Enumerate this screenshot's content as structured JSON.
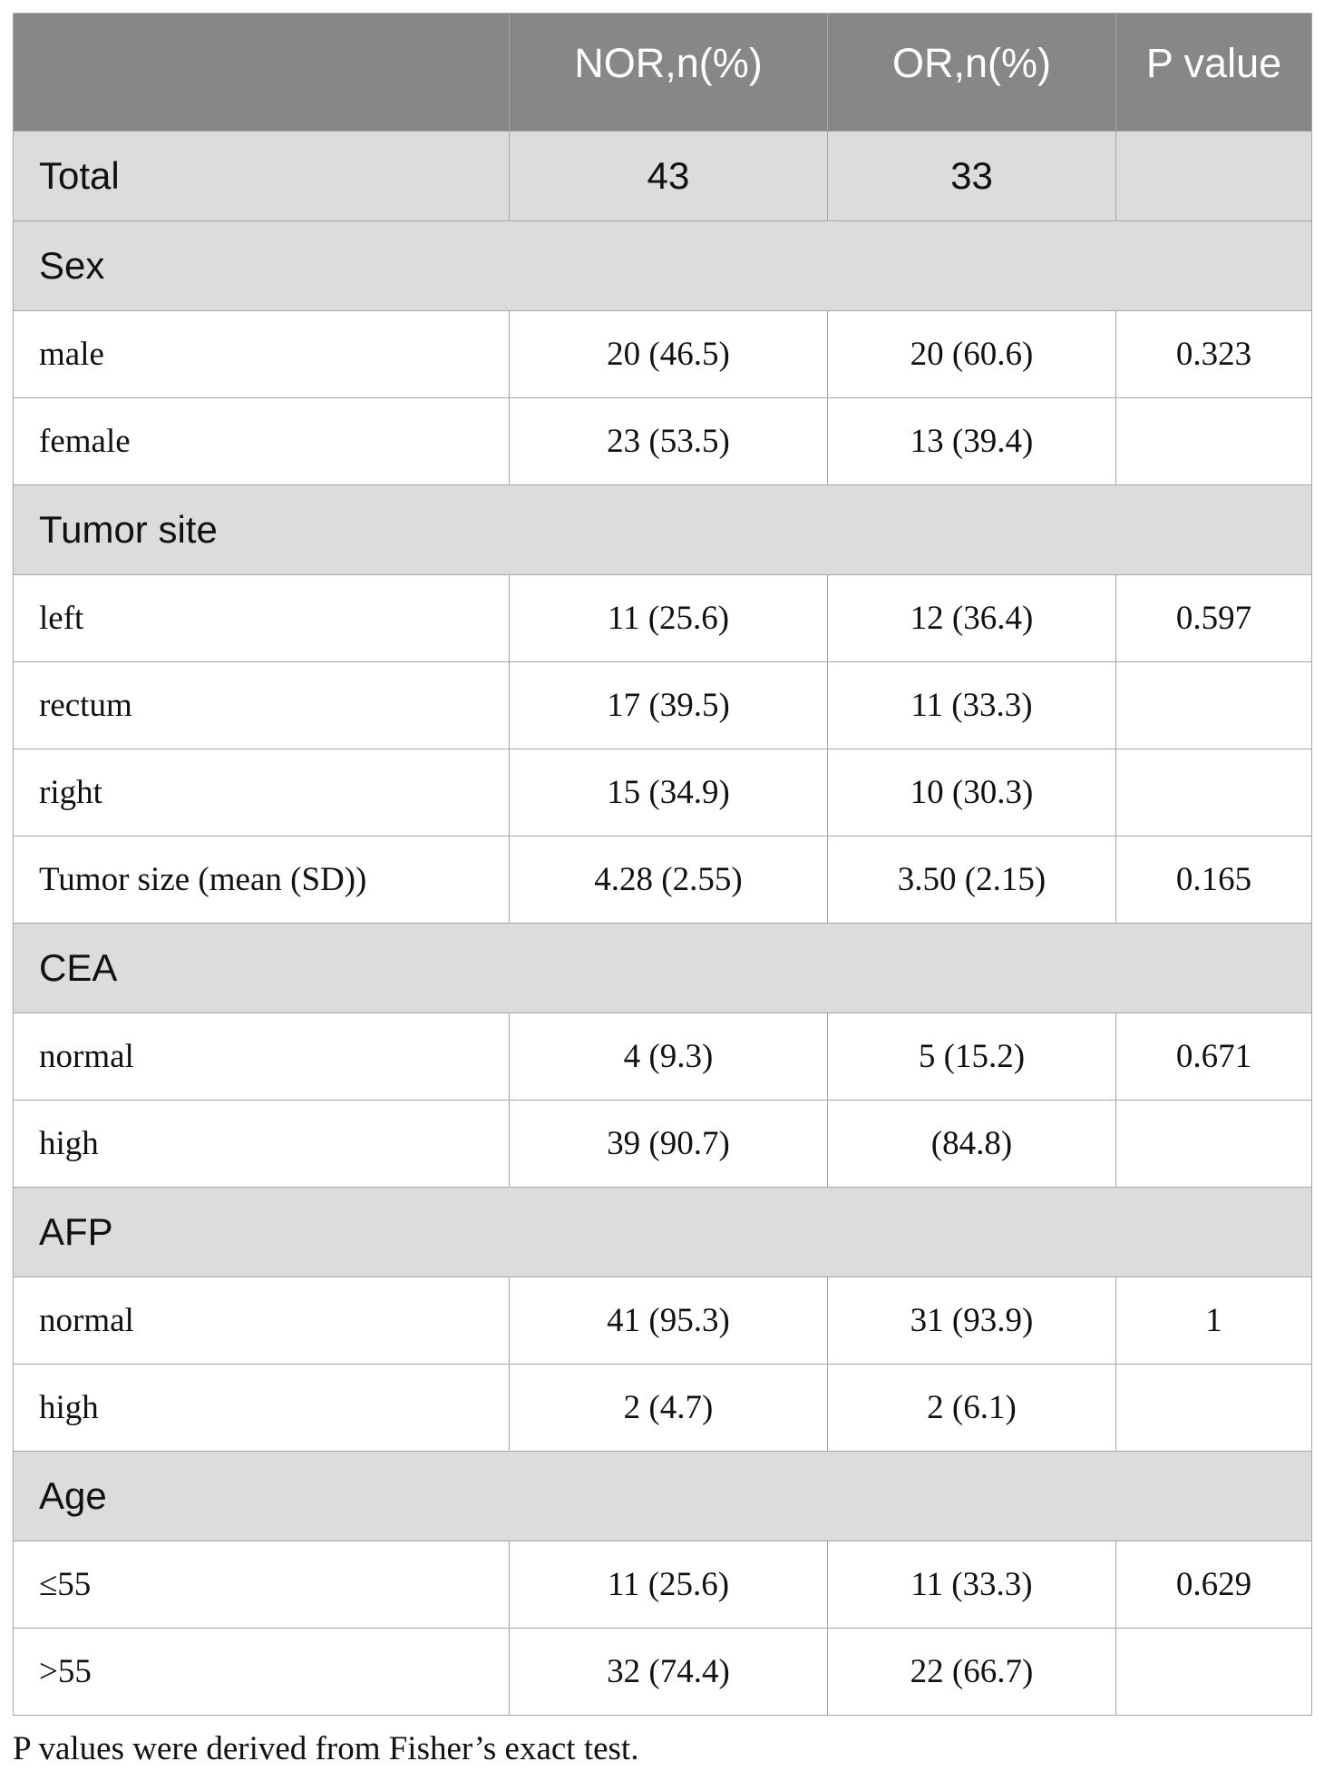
{
  "table": {
    "header": {
      "col0": "",
      "col1": "NOR,n(%)",
      "col2": "OR,n(%)",
      "col3": "P value"
    },
    "total": {
      "label": "Total",
      "nor": "43",
      "or": "33",
      "p": ""
    },
    "sections": [
      {
        "title": "Sex",
        "rows": [
          {
            "label": "male",
            "nor": "20 (46.5)",
            "or": "20 (60.6)",
            "p": "0.323"
          },
          {
            "label": "female",
            "nor": "23 (53.5)",
            "or": "13 (39.4)",
            "p": ""
          }
        ]
      },
      {
        "title": "Tumor site",
        "rows": [
          {
            "label": "left",
            "nor": "11 (25.6)",
            "or": "12 (36.4)",
            "p": "0.597"
          },
          {
            "label": "rectum",
            "nor": "17 (39.5)",
            "or": "11 (33.3)",
            "p": ""
          },
          {
            "label": "right",
            "nor": "15 (34.9)",
            "or": "10 (30.3)",
            "p": ""
          },
          {
            "label": "Tumor size (mean (SD))",
            "nor": "4.28 (2.55)",
            "or": "3.50 (2.15)",
            "p": "0.165"
          }
        ]
      },
      {
        "title": "CEA",
        "rows": [
          {
            "label": "normal",
            "nor": "4 (9.3)",
            "or": "5 (15.2)",
            "p": "0.671"
          },
          {
            "label": "high",
            "nor": "39 (90.7)",
            "or": "(84.8)",
            "p": ""
          }
        ]
      },
      {
        "title": "AFP",
        "rows": [
          {
            "label": "normal",
            "nor": "41 (95.3)",
            "or": "31 (93.9)",
            "p": "1"
          },
          {
            "label": "high",
            "nor": "2 (4.7)",
            "or": "2 (6.1)",
            "p": ""
          }
        ]
      },
      {
        "title": "Age",
        "rows": [
          {
            "label": "≤55",
            "nor": "11 (25.6)",
            "or": "11 (33.3)",
            "p": "0.629"
          },
          {
            "label": ">55",
            "nor": "32 (74.4)",
            "or": "22 (66.7)",
            "p": ""
          }
        ]
      }
    ],
    "footnote": "P values were derived from Fisher’s exact test."
  }
}
